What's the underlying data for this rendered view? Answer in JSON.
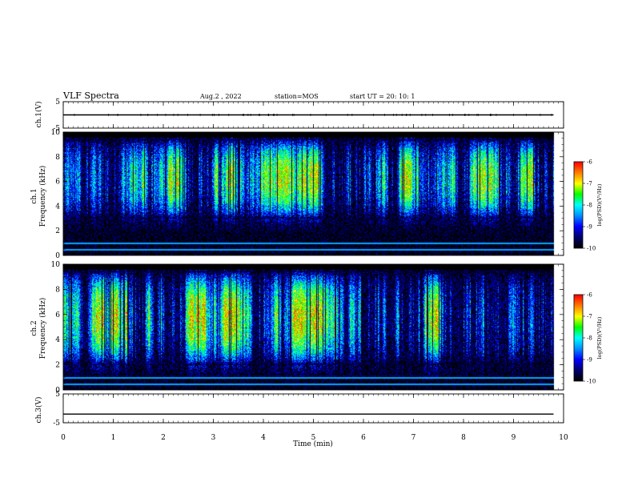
{
  "header": {
    "title": "VLF Spectra",
    "date": "Aug.2 , 2022",
    "station": "station=MOS",
    "start": "start UT =  20: 10: 1"
  },
  "panels": {
    "ch1v": {
      "ylabel": "ch.1(V)"
    },
    "ch1": {
      "ylabel_line1": "ch.1",
      "ylabel_line2": "Frequency (kHz)"
    },
    "ch2": {
      "ylabel_line1": "ch.2",
      "ylabel_line2": "Frequency (kHz)"
    },
    "ch3v": {
      "ylabel": "ch.3(V)"
    }
  },
  "colorbar": {
    "label": "log(PSD)(V²/Hz)",
    "ticks": [
      "-6",
      "-7",
      "-8",
      "-9",
      "-10"
    ]
  },
  "colors": {
    "scale": [
      "#000000",
      "#00006e",
      "#0000ff",
      "#0090ff",
      "#00ffff",
      "#00ff00",
      "#ffff00",
      "#ff7f00",
      "#ff0000",
      "#ffffff"
    ]
  },
  "chart_data": [
    {
      "type": "line",
      "name": "ch.1(V)",
      "ylabel": "ch.1(V)",
      "xlim": [
        0,
        10
      ],
      "ylim": [
        -5,
        5
      ],
      "yticks": [
        "5",
        "-5"
      ],
      "x": [
        0,
        9.8
      ],
      "y": [
        0,
        0
      ]
    },
    {
      "type": "heatmap",
      "name": "ch.1",
      "ylabel": "Frequency (kHz)",
      "xlim": [
        0,
        10
      ],
      "ylim": [
        0,
        10
      ],
      "yticks": [
        "0",
        "2",
        "4",
        "6",
        "8",
        "10"
      ],
      "zlim": [
        -10,
        -6
      ],
      "band_khz": [
        3,
        9.5
      ],
      "peak_log_psd": -7,
      "floor_log_psd": -10,
      "data_end_min": 9.8
    },
    {
      "type": "heatmap",
      "name": "ch.2",
      "ylabel": "Frequency (kHz)",
      "xlim": [
        0,
        10
      ],
      "ylim": [
        0,
        10
      ],
      "yticks": [
        "0",
        "2",
        "4",
        "6",
        "8",
        "10"
      ],
      "zlim": [
        -10,
        -6
      ],
      "band_khz": [
        2,
        9.5
      ],
      "peak_log_psd": -6.8,
      "floor_log_psd": -10,
      "data_end_min": 9.8
    },
    {
      "type": "line",
      "name": "ch.3(V)",
      "ylabel": "ch.3(V)",
      "xlim": [
        0,
        10
      ],
      "ylim": [
        -5,
        5
      ],
      "yticks": [
        "5",
        "-5"
      ],
      "x": [
        0,
        9.8
      ],
      "y": [
        -2,
        -2
      ]
    }
  ],
  "xaxis": {
    "label": "Time (min)",
    "ticks": [
      "0",
      "1",
      "2",
      "3",
      "4",
      "5",
      "6",
      "7",
      "8",
      "9",
      "10"
    ]
  }
}
